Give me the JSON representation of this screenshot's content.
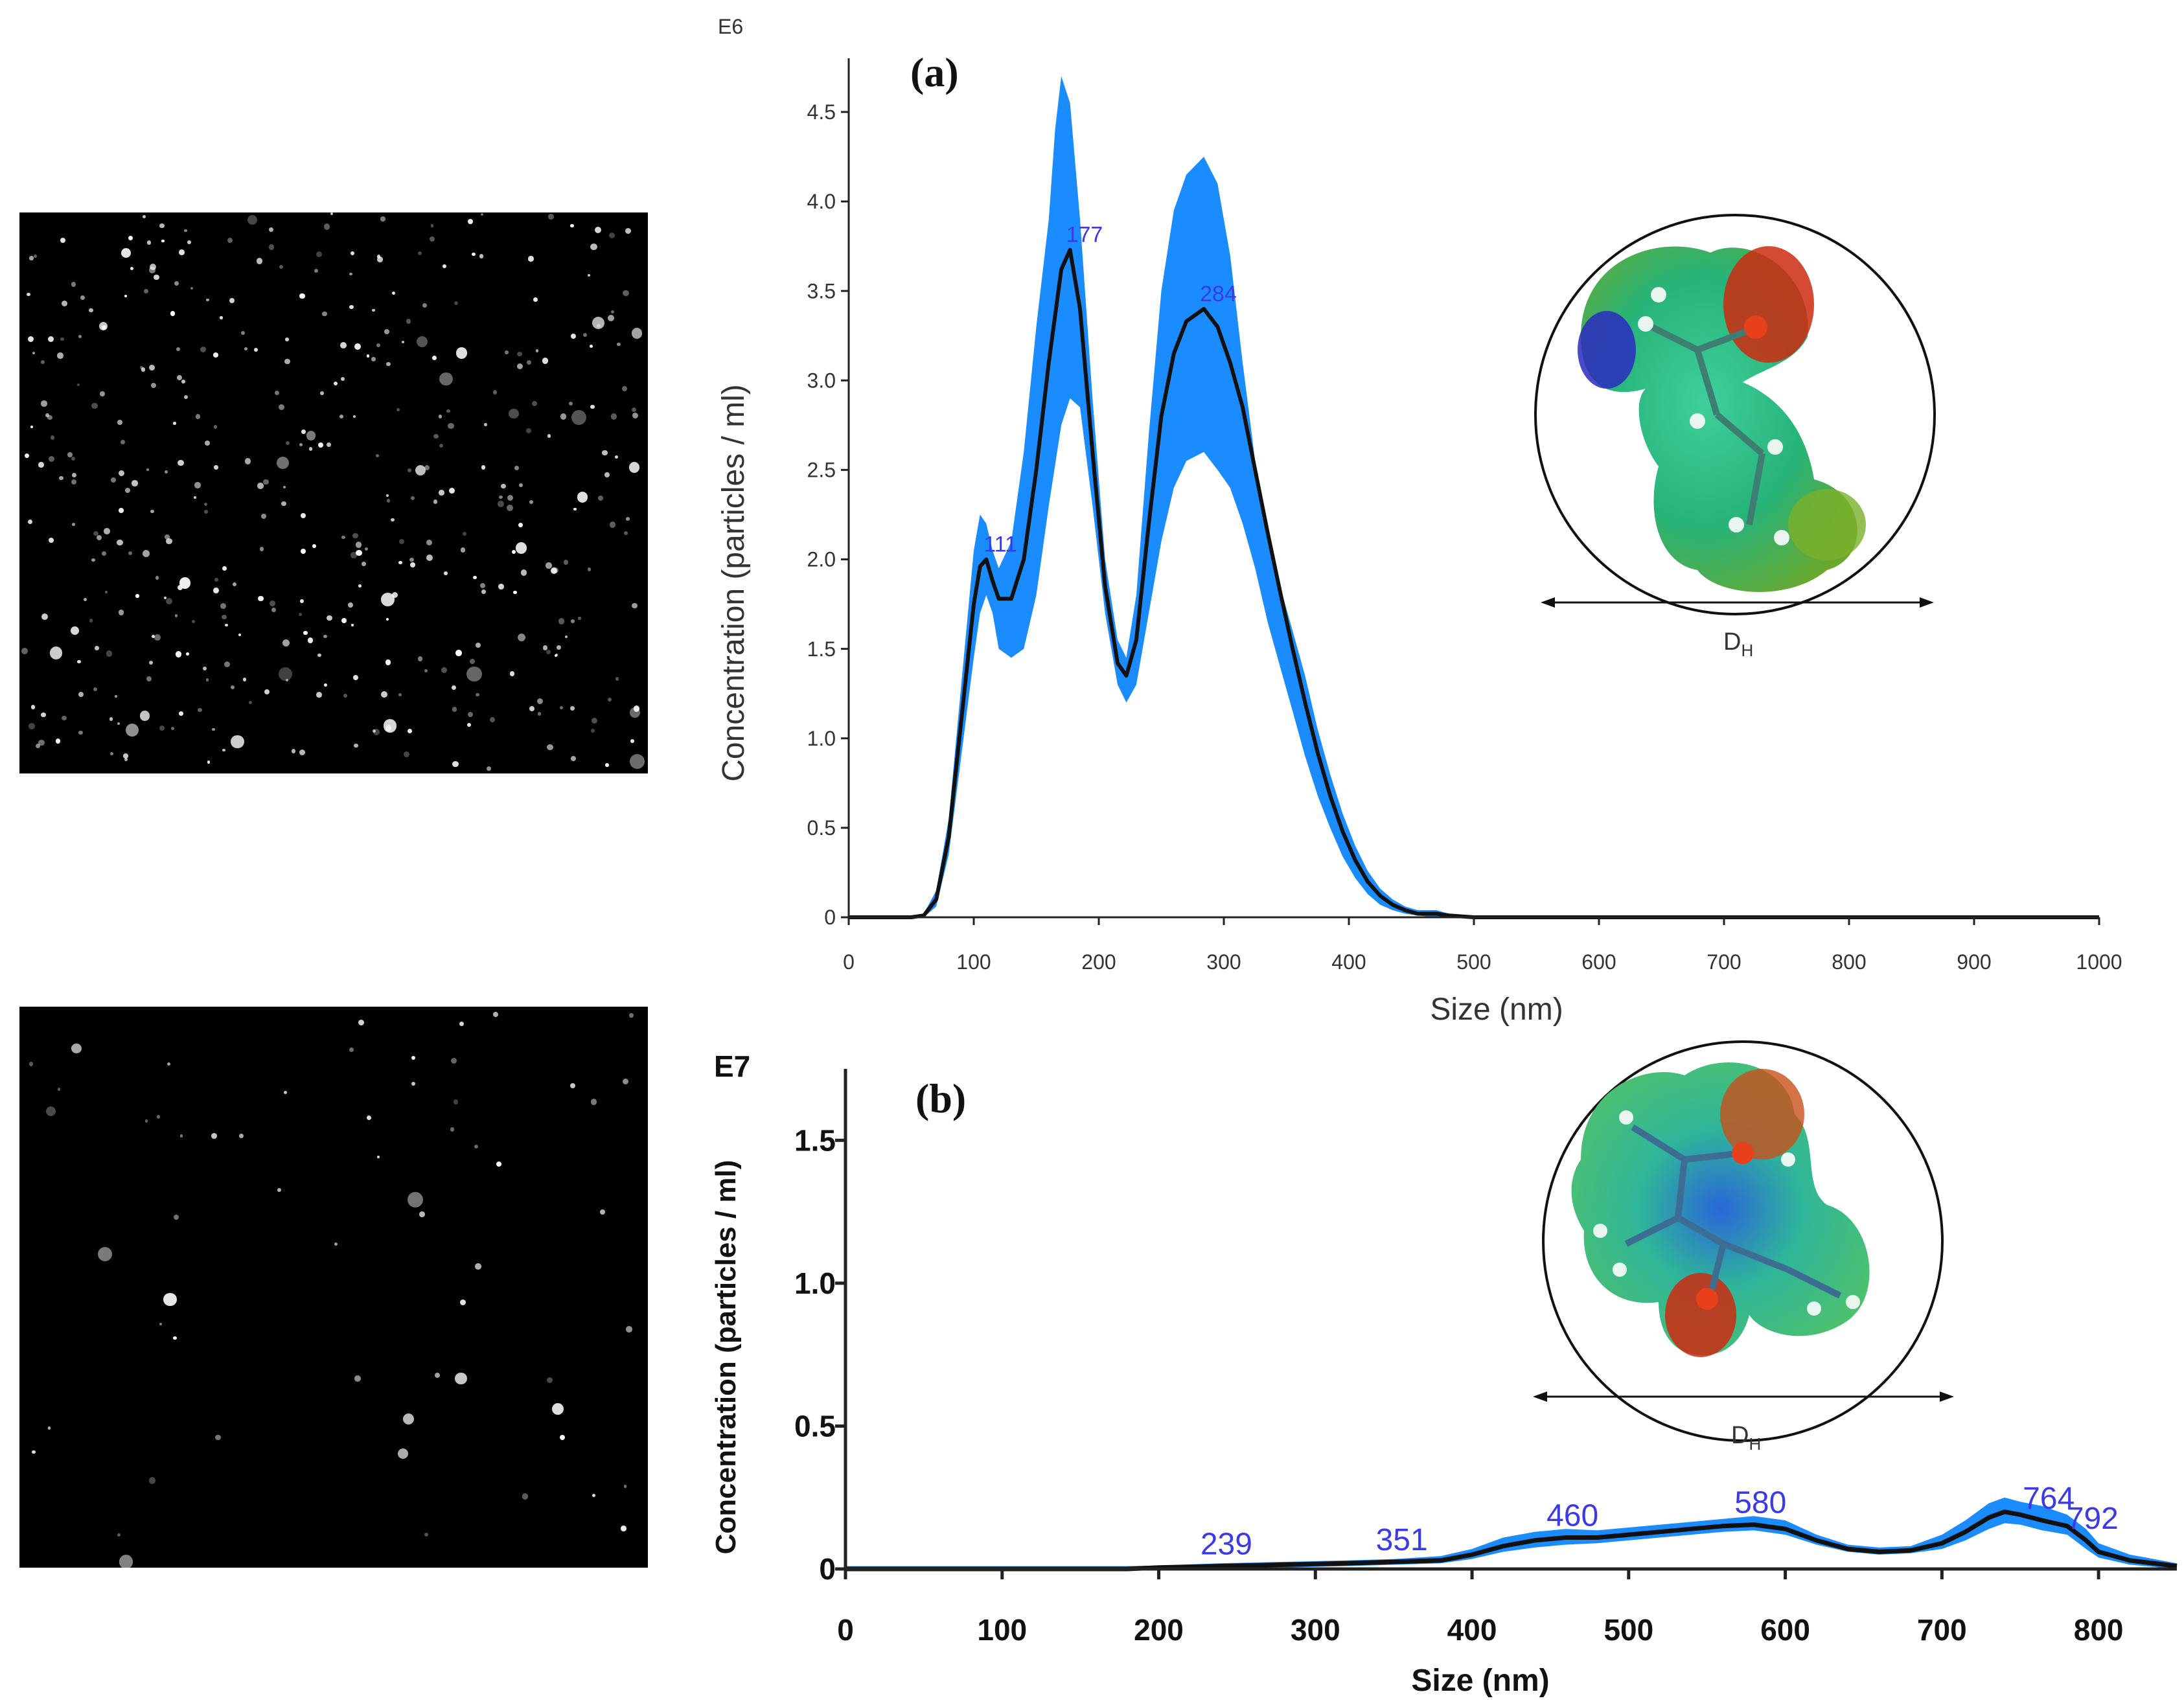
{
  "chart_data": [
    {
      "id": "a",
      "type": "area",
      "panel_label": "(a)",
      "exponent_label": "E6",
      "xlabel": "Size (nm)",
      "ylabel": "Concentration (particles / ml)",
      "xlim": [
        0,
        1000
      ],
      "ylim": [
        0,
        4.8
      ],
      "xticks": [
        0,
        100,
        200,
        300,
        400,
        500,
        600,
        700,
        800,
        900,
        1000
      ],
      "yticks": [
        0,
        0.5,
        1.0,
        1.5,
        2.0,
        2.5,
        3.0,
        3.5,
        4.0,
        4.5
      ],
      "ytick_labels": [
        "0",
        "0.5",
        "1.0",
        "1.5",
        "2.0",
        "2.5",
        "3.0",
        "3.5",
        "4.0",
        "4.5"
      ],
      "series": [
        {
          "name": "mean",
          "x": [
            0,
            50,
            60,
            70,
            80,
            90,
            100,
            105,
            110,
            115,
            120,
            130,
            140,
            150,
            160,
            170,
            177,
            185,
            195,
            205,
            215,
            222,
            230,
            240,
            250,
            260,
            270,
            284,
            295,
            305,
            315,
            325,
            335,
            345,
            355,
            365,
            375,
            385,
            395,
            405,
            415,
            425,
            435,
            445,
            455,
            470,
            480,
            500,
            520,
            540,
            1000
          ],
          "y": [
            0,
            0,
            0.01,
            0.1,
            0.45,
            1.1,
            1.75,
            1.96,
            2.0,
            1.88,
            1.78,
            1.78,
            2.0,
            2.5,
            3.1,
            3.62,
            3.73,
            3.4,
            2.6,
            1.85,
            1.42,
            1.35,
            1.55,
            2.2,
            2.8,
            3.15,
            3.33,
            3.4,
            3.3,
            3.1,
            2.85,
            2.5,
            2.15,
            1.82,
            1.5,
            1.2,
            0.92,
            0.68,
            0.48,
            0.32,
            0.2,
            0.12,
            0.07,
            0.04,
            0.02,
            0.02,
            0.01,
            0.0,
            0.0,
            0.0,
            0.0
          ]
        },
        {
          "name": "upper",
          "x": [
            0,
            50,
            60,
            70,
            80,
            90,
            100,
            105,
            110,
            115,
            120,
            130,
            140,
            150,
            160,
            165,
            170,
            177,
            185,
            195,
            205,
            215,
            222,
            230,
            240,
            250,
            260,
            270,
            284,
            295,
            305,
            315,
            325,
            335,
            345,
            355,
            365,
            375,
            385,
            395,
            405,
            415,
            425,
            435,
            445,
            455,
            470,
            480,
            500,
            520,
            540,
            1000
          ],
          "y": [
            0,
            0,
            0.02,
            0.15,
            0.55,
            1.3,
            2.05,
            2.25,
            2.2,
            2.05,
            1.95,
            2.1,
            2.6,
            3.3,
            3.9,
            4.4,
            4.7,
            4.55,
            3.9,
            2.9,
            2.0,
            1.55,
            1.45,
            1.8,
            2.7,
            3.5,
            3.95,
            4.15,
            4.25,
            4.1,
            3.7,
            3.1,
            2.55,
            2.15,
            1.85,
            1.6,
            1.35,
            1.05,
            0.8,
            0.58,
            0.4,
            0.26,
            0.16,
            0.1,
            0.06,
            0.04,
            0.04,
            0.02,
            0.01,
            0.0,
            0.0,
            0.0
          ]
        },
        {
          "name": "lower",
          "x": [
            0,
            50,
            60,
            70,
            80,
            90,
            100,
            105,
            110,
            115,
            120,
            130,
            140,
            150,
            160,
            170,
            177,
            185,
            195,
            205,
            215,
            222,
            230,
            240,
            250,
            260,
            270,
            284,
            295,
            305,
            315,
            325,
            335,
            345,
            355,
            365,
            375,
            385,
            395,
            405,
            415,
            425,
            435,
            445,
            455,
            470,
            480,
            500,
            520,
            540,
            1000
          ],
          "y": [
            0,
            0,
            0.0,
            0.06,
            0.35,
            0.9,
            1.45,
            1.7,
            1.8,
            1.7,
            1.5,
            1.45,
            1.5,
            1.8,
            2.3,
            2.75,
            2.9,
            2.85,
            2.3,
            1.7,
            1.3,
            1.2,
            1.3,
            1.7,
            2.1,
            2.4,
            2.55,
            2.6,
            2.5,
            2.4,
            2.2,
            1.95,
            1.65,
            1.4,
            1.15,
            0.9,
            0.68,
            0.5,
            0.34,
            0.22,
            0.13,
            0.07,
            0.04,
            0.02,
            0.01,
            0.0,
            0.0,
            0.0,
            0.0,
            0.0,
            0.0
          ]
        }
      ],
      "peak_labels": [
        {
          "x": 111,
          "y": 2.0,
          "text": "111"
        },
        {
          "x": 177,
          "y": 3.73,
          "text": "177"
        },
        {
          "x": 284,
          "y": 3.4,
          "text": "284"
        }
      ],
      "inset": {
        "label": "D",
        "subscript": "H"
      }
    },
    {
      "id": "b",
      "type": "area",
      "panel_label": "(b)",
      "exponent_label": "E7",
      "xlabel": "Size (nm)",
      "ylabel": "Concentration (particles / ml)",
      "xlim": [
        0,
        850
      ],
      "ylim": [
        0,
        1.75
      ],
      "xticks": [
        0,
        100,
        200,
        300,
        400,
        500,
        600,
        700,
        800
      ],
      "yticks": [
        0,
        0.5,
        1.0,
        1.5
      ],
      "ytick_labels": [
        "0",
        "0.5",
        "1.0",
        "1.5"
      ],
      "series": [
        {
          "name": "mean",
          "x": [
            0,
            180,
            200,
            239,
            280,
            320,
            351,
            380,
            400,
            420,
            440,
            460,
            480,
            500,
            520,
            540,
            560,
            580,
            600,
            620,
            640,
            660,
            680,
            700,
            715,
            730,
            740,
            750,
            764,
            780,
            792,
            800,
            820,
            850
          ],
          "y": [
            0.0,
            0.0,
            0.005,
            0.01,
            0.015,
            0.02,
            0.025,
            0.03,
            0.05,
            0.08,
            0.1,
            0.11,
            0.11,
            0.12,
            0.13,
            0.14,
            0.15,
            0.155,
            0.14,
            0.1,
            0.07,
            0.06,
            0.065,
            0.09,
            0.13,
            0.18,
            0.2,
            0.19,
            0.17,
            0.15,
            0.1,
            0.06,
            0.03,
            0.01
          ]
        },
        {
          "name": "upper",
          "x": [
            0,
            180,
            200,
            239,
            280,
            320,
            351,
            380,
            400,
            420,
            440,
            460,
            480,
            500,
            520,
            540,
            560,
            580,
            600,
            620,
            640,
            660,
            680,
            700,
            715,
            730,
            740,
            750,
            764,
            780,
            792,
            800,
            820,
            850
          ],
          "y": [
            0.01,
            0.01,
            0.012,
            0.02,
            0.025,
            0.03,
            0.035,
            0.045,
            0.07,
            0.11,
            0.13,
            0.14,
            0.135,
            0.145,
            0.155,
            0.165,
            0.175,
            0.185,
            0.17,
            0.12,
            0.085,
            0.075,
            0.08,
            0.12,
            0.17,
            0.23,
            0.25,
            0.235,
            0.22,
            0.19,
            0.14,
            0.09,
            0.05,
            0.02
          ]
        },
        {
          "name": "lower",
          "x": [
            0,
            180,
            200,
            239,
            280,
            320,
            351,
            380,
            400,
            420,
            440,
            460,
            480,
            500,
            520,
            540,
            560,
            580,
            600,
            620,
            640,
            660,
            680,
            700,
            715,
            730,
            740,
            750,
            764,
            780,
            792,
            800,
            820,
            850
          ],
          "y": [
            0.0,
            0.0,
            0.0,
            0.0,
            0.005,
            0.01,
            0.015,
            0.02,
            0.035,
            0.06,
            0.075,
            0.085,
            0.09,
            0.1,
            0.11,
            0.12,
            0.13,
            0.135,
            0.12,
            0.085,
            0.06,
            0.05,
            0.055,
            0.07,
            0.1,
            0.14,
            0.16,
            0.155,
            0.135,
            0.12,
            0.07,
            0.04,
            0.015,
            0.0
          ]
        }
      ],
      "peak_labels": [
        {
          "x": 239,
          "y": 0.01,
          "text": "239"
        },
        {
          "x": 351,
          "y": 0.025,
          "text": "351"
        },
        {
          "x": 460,
          "y": 0.11,
          "text": "460"
        },
        {
          "x": 580,
          "y": 0.155,
          "text": "580"
        },
        {
          "x": 764,
          "y": 0.17,
          "text": "764"
        },
        {
          "x": 792,
          "y": 0.1,
          "text": "792"
        }
      ],
      "inset": {
        "label": "D",
        "subscript": "H"
      }
    }
  ],
  "colors": {
    "band": "#1a8cff",
    "mean_line": "#111111",
    "peak_label": "#3a3ae6"
  }
}
